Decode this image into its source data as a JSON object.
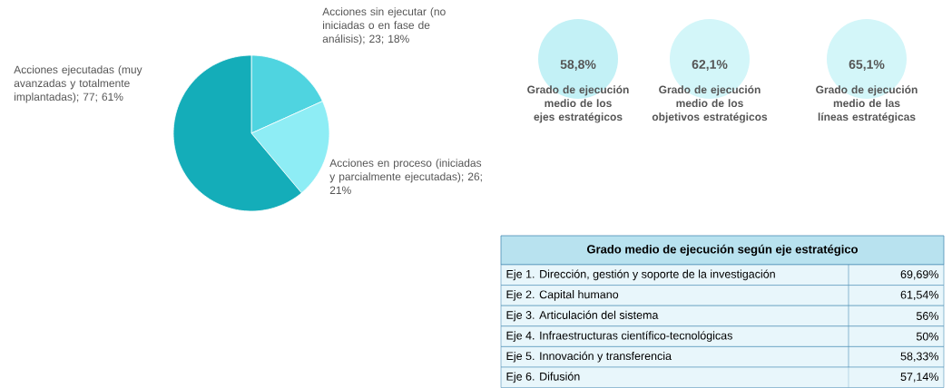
{
  "chart_data": [
    {
      "type": "pie",
      "categories": [
        "Acciones sin ejecutar (no iniciadas o en fase de análisis)",
        "Acciones en proceso (iniciadas y parcialmente ejecutadas)",
        "Acciones ejecutadas (muy avanzadas y totalmente implantadas)"
      ],
      "values": [
        23,
        26,
        77
      ],
      "value_labels": [
        "; 23; 18%",
        "; 26; 21%",
        "; 77; 61%"
      ],
      "colors": [
        "#4fd4e0",
        "#8eedf5",
        "#14adb9"
      ]
    },
    {
      "type": "other",
      "categories": [
        "Grado de ejecución medio de los ejes estratégicos",
        "Grado de ejecución medio de los objetivos estratégicos",
        "Grado de ejecución medio de las líneas estratégicas"
      ],
      "value_labels": [
        "58,8%",
        "62,1%",
        "65,1%"
      ],
      "colors": [
        "#c3f1f6",
        "#d3f6f9",
        "#d3f6f9"
      ]
    },
    {
      "type": "other",
      "title": "Grado medio de ejecución según eje estratégico",
      "categories": [
        "Eje 1. Dirección, gestión y soporte de la investigación",
        "Eje 2. Capital humano",
        "Eje 3. Articulación del sistema",
        "Eje 4. Infraestructuras científico-tecnológicas",
        "Eje 5. Innovación y transferencia",
        "Eje 6. Difusión"
      ],
      "value_labels": [
        "69,69%",
        "61,54%",
        "56%",
        "50%",
        "58,33%",
        "57,14%"
      ]
    }
  ]
}
